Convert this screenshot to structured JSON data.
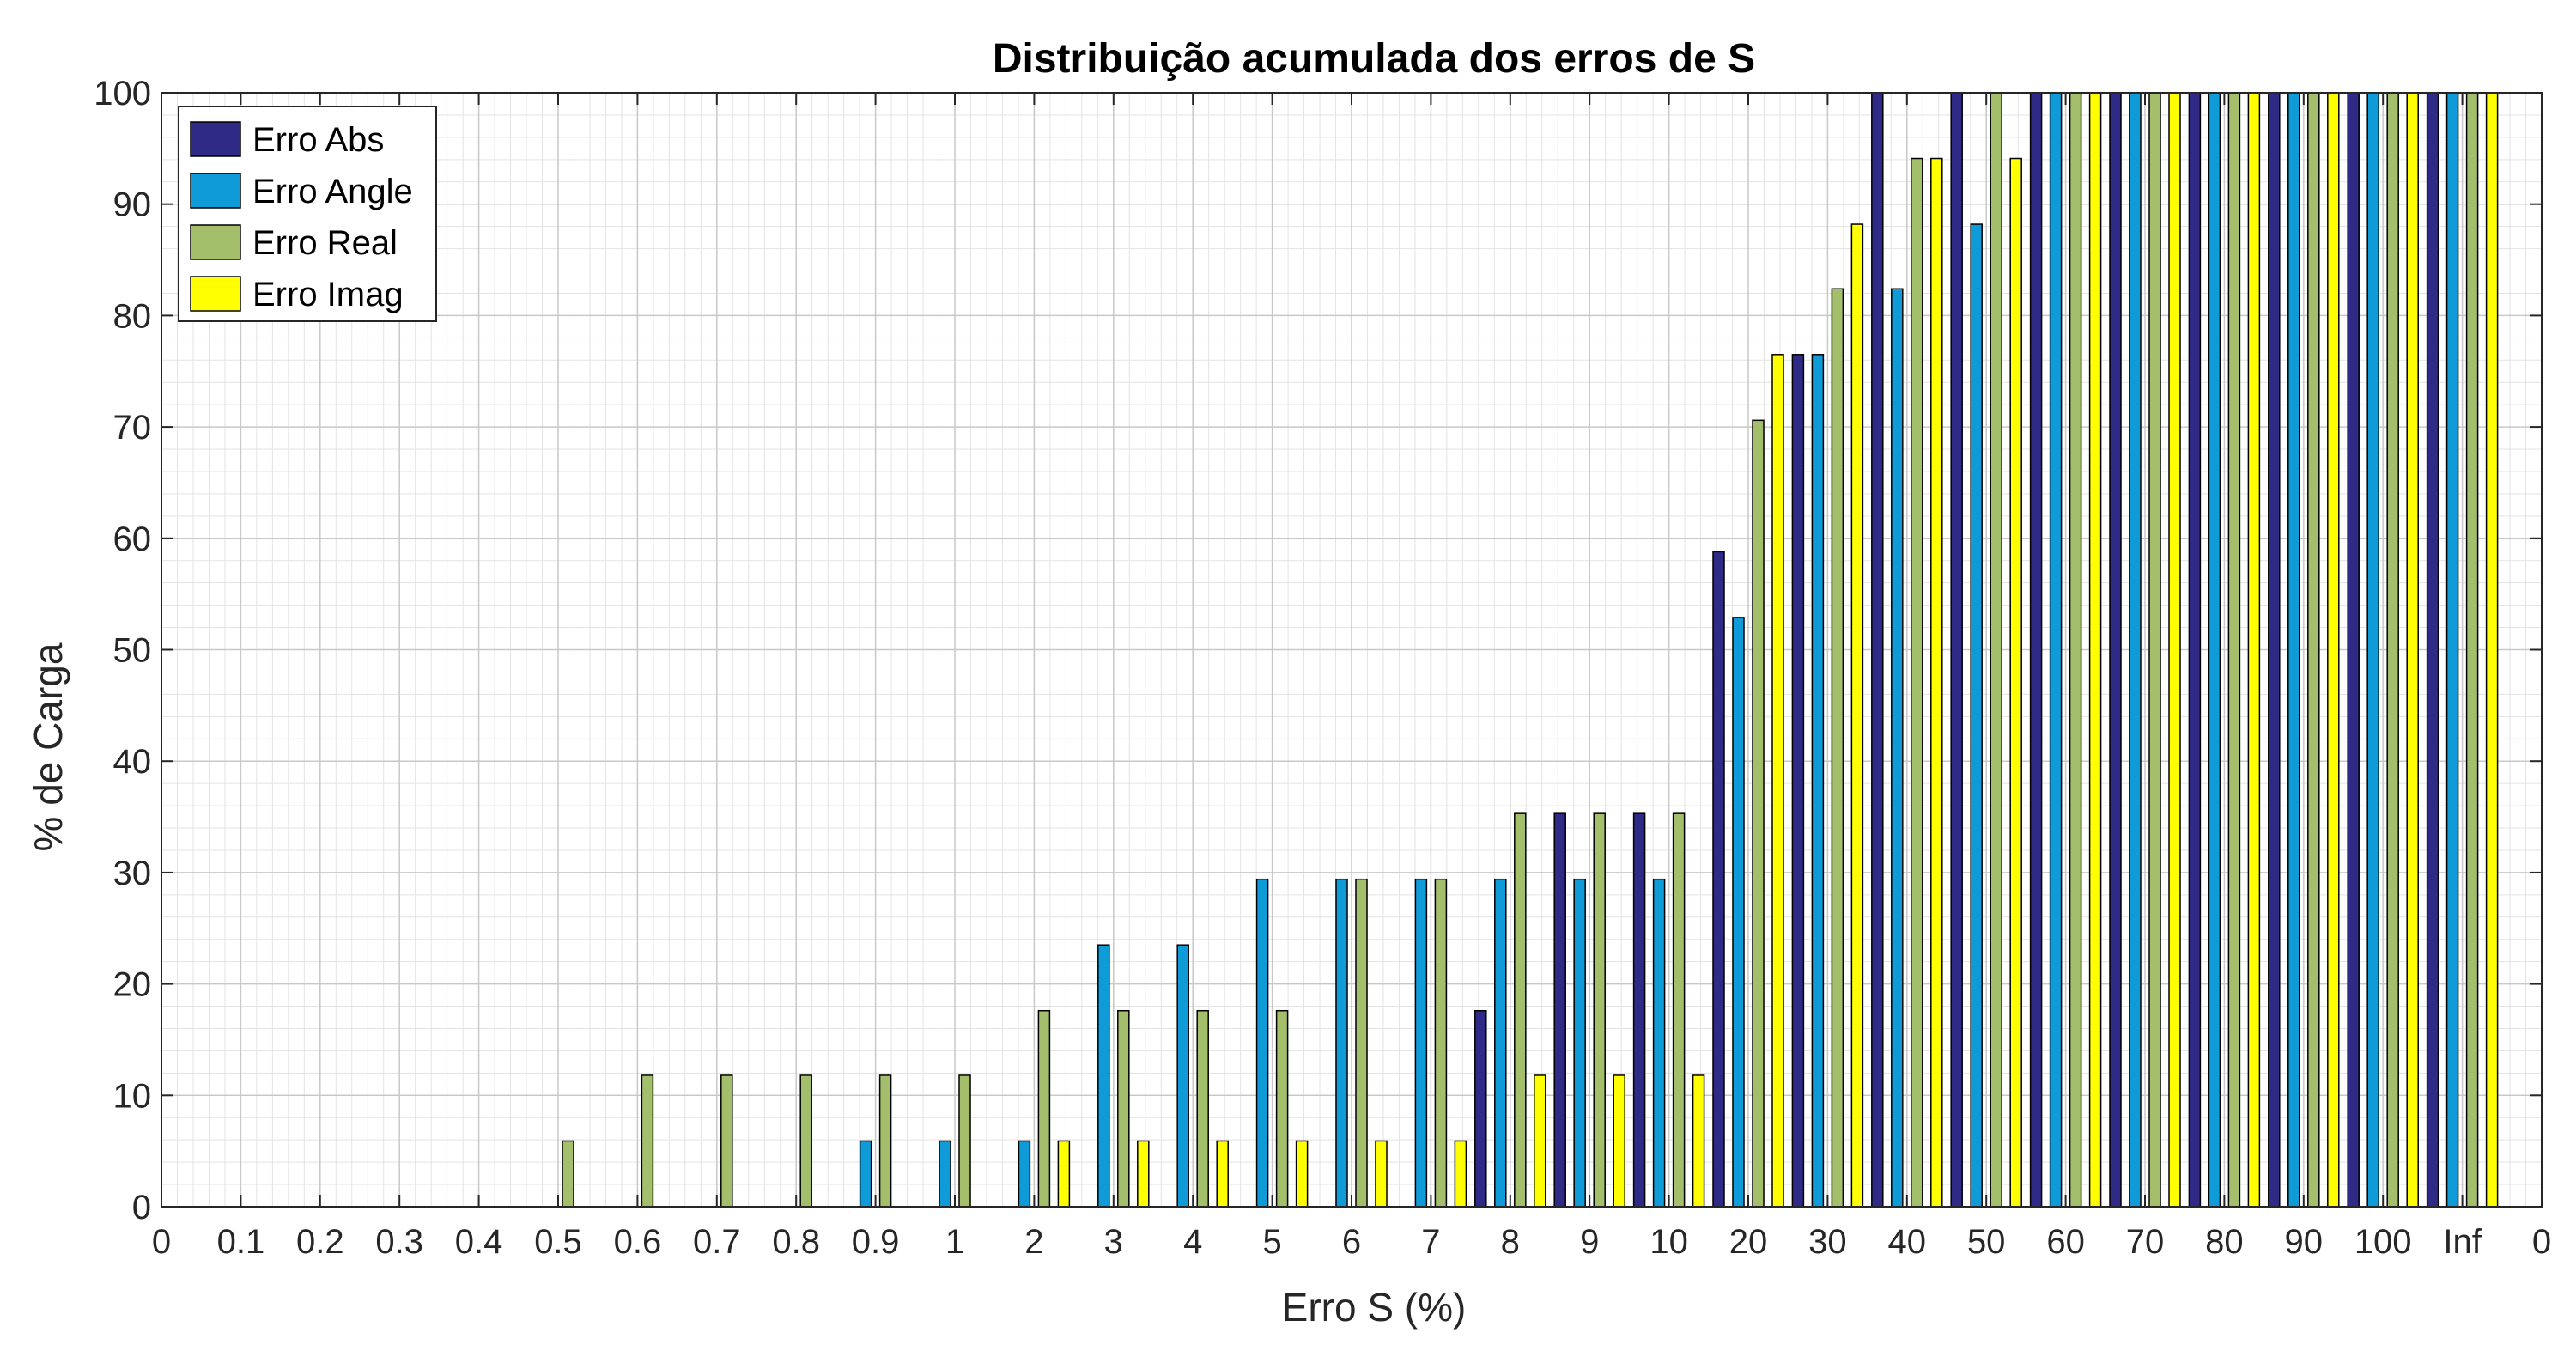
{
  "chart_data": {
    "type": "bar",
    "title": "Distribuição acumulada dos erros de S",
    "xlabel": "Erro S (%)",
    "ylabel": "% de Carga",
    "ylim": [
      0,
      100
    ],
    "yticks": [
      "0",
      "10",
      "20",
      "30",
      "40",
      "50",
      "60",
      "70",
      "80",
      "90",
      "100"
    ],
    "xtick_labels": [
      "0",
      "0.1",
      "0.2",
      "0.3",
      "0.4",
      "0.5",
      "0.6",
      "0.7",
      "0.8",
      "0.9",
      "1",
      "2",
      "3",
      "4",
      "5",
      "6",
      "7",
      "8",
      "9",
      "10",
      "20",
      "30",
      "40",
      "50",
      "60",
      "70",
      "80",
      "90",
      "100",
      "Inf",
      "0"
    ],
    "categories": [
      "0.1",
      "0.2",
      "0.3",
      "0.4",
      "0.5",
      "0.6",
      "0.7",
      "0.8",
      "0.9",
      "1",
      "2",
      "3",
      "4",
      "5",
      "6",
      "7",
      "8",
      "9",
      "10",
      "20",
      "30",
      "40",
      "50",
      "60",
      "70",
      "80",
      "90",
      "100",
      "Inf"
    ],
    "series": [
      {
        "name": "Erro Abs",
        "color": "#2e2a86",
        "values": [
          0,
          0,
          0,
          0,
          0,
          0,
          0,
          0,
          0,
          0,
          0,
          0,
          0,
          0,
          0,
          0,
          17.6,
          35.3,
          35.3,
          58.8,
          76.5,
          100,
          100,
          100,
          100,
          100,
          100,
          100,
          100
        ]
      },
      {
        "name": "Erro Angle",
        "color": "#0f9bd7",
        "values": [
          0,
          0,
          0,
          0,
          0,
          0,
          0,
          0,
          5.9,
          5.9,
          5.9,
          23.5,
          23.5,
          29.4,
          29.4,
          29.4,
          29.4,
          29.4,
          29.4,
          52.9,
          76.5,
          82.4,
          88.2,
          100,
          100,
          100,
          100,
          100,
          100
        ]
      },
      {
        "name": "Erro Real",
        "color": "#a3bf6c",
        "values": [
          0,
          0,
          0,
          0,
          5.9,
          11.8,
          11.8,
          11.8,
          11.8,
          11.8,
          17.6,
          17.6,
          17.6,
          17.6,
          29.4,
          29.4,
          35.3,
          35.3,
          35.3,
          70.6,
          82.4,
          94.1,
          100,
          100,
          100,
          100,
          100,
          100,
          100
        ]
      },
      {
        "name": "Erro Imag",
        "color": "#ffff00",
        "values": [
          0,
          0,
          0,
          0,
          0,
          0,
          0,
          0,
          0,
          0,
          5.9,
          5.9,
          5.9,
          5.9,
          5.9,
          5.9,
          11.8,
          11.8,
          11.8,
          76.5,
          88.2,
          94.1,
          94.1,
          100,
          100,
          100,
          100,
          100,
          100
        ]
      }
    ],
    "grid": true,
    "minor_grid": true,
    "legend": "top-left"
  }
}
